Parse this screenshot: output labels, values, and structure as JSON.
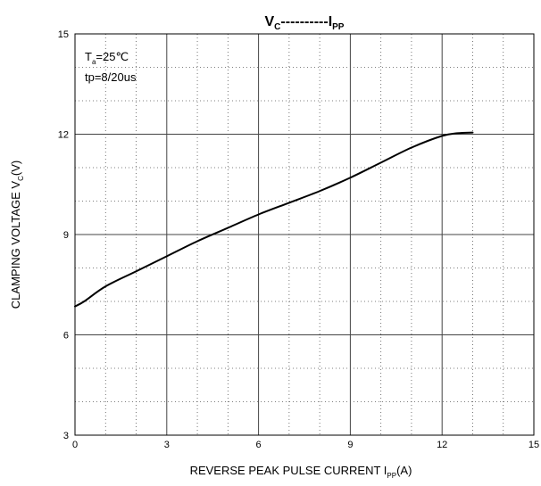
{
  "chart_data": {
    "type": "line",
    "title": {
      "v": "V",
      "v_sub": "C",
      "dashes": "----------",
      "i": "I",
      "i_sub": "PP"
    },
    "xlabel": {
      "main": "REVERSE PEAK PULSE CURRENT  I",
      "sub": "PP",
      "unit": "(A)"
    },
    "ylabel": {
      "main": "CLAMPING VOLTAGE  V",
      "sub": "C",
      "unit": "(V)"
    },
    "annotations": {
      "temp_main": "T",
      "temp_sub": "a",
      "temp_val": "=25℃",
      "pulse": "tp=8/20us"
    },
    "xlim": [
      0,
      15
    ],
    "ylim": [
      3,
      15
    ],
    "xticks": [
      0,
      3,
      6,
      9,
      12,
      15
    ],
    "yticks": [
      3,
      6,
      9,
      12,
      15
    ],
    "x_minor_step": 1,
    "y_minor_step": 1,
    "grid": true,
    "series": [
      {
        "points": [
          [
            0.0,
            6.85
          ],
          [
            0.3,
            7.0
          ],
          [
            1.0,
            7.45
          ],
          [
            2.0,
            7.9
          ],
          [
            3.0,
            8.35
          ],
          [
            4.0,
            8.8
          ],
          [
            5.0,
            9.2
          ],
          [
            6.0,
            9.6
          ],
          [
            7.0,
            9.95
          ],
          [
            8.0,
            10.3
          ],
          [
            9.0,
            10.7
          ],
          [
            10.0,
            11.15
          ],
          [
            11.0,
            11.6
          ],
          [
            12.0,
            11.95
          ],
          [
            12.5,
            12.03
          ],
          [
            13.0,
            12.05
          ]
        ],
        "color": "#000000"
      }
    ]
  }
}
